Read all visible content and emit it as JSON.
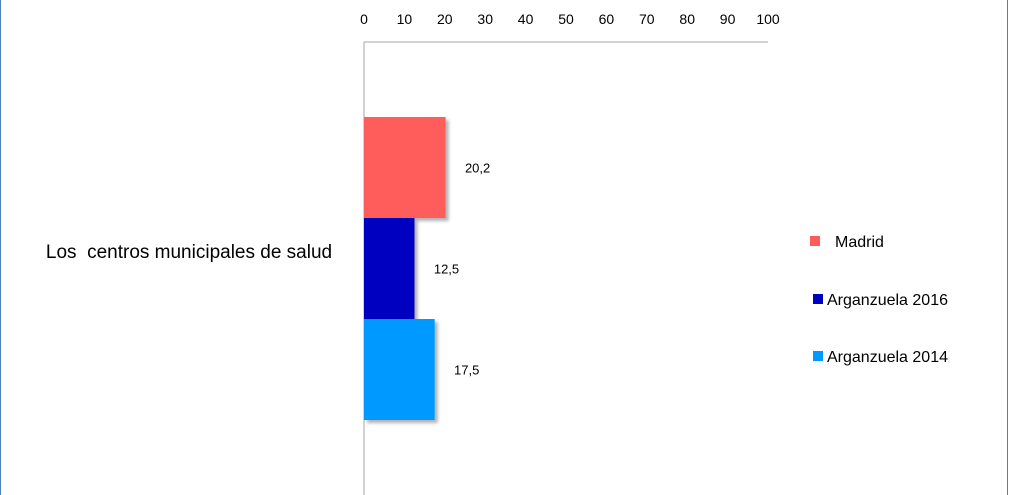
{
  "chart_data": {
    "type": "bar",
    "orientation": "horizontal",
    "categories": [
      "Los  centros municipales de salud"
    ],
    "series": [
      {
        "name": "Madrid",
        "values": [
          20.2
        ],
        "value_labels": [
          "20,2"
        ],
        "color": "#ff5b5b"
      },
      {
        "name": "Arganzuela 2016",
        "values": [
          12.5
        ],
        "value_labels": [
          "12,5"
        ],
        "color": "#0000c0"
      },
      {
        "name": "Arganzuela 2014",
        "values": [
          17.5
        ],
        "value_labels": [
          "17,5"
        ],
        "color": "#0099ff"
      }
    ],
    "xlim": [
      0,
      100
    ],
    "xticks": [
      "0",
      "10",
      "20",
      "30",
      "40",
      "50",
      "60",
      "70",
      "80",
      "90",
      "100"
    ],
    "xaxis_position": "top",
    "grid": false,
    "legend_position": "right"
  },
  "colors": {
    "frame": "#4f81bd",
    "axis": "#a6a6a6"
  }
}
